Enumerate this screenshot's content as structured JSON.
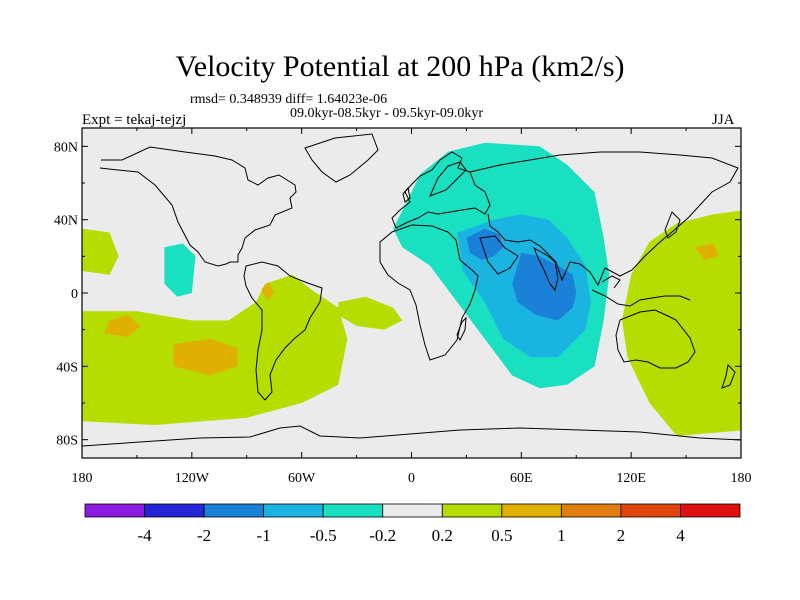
{
  "chart_data": {
    "type": "contour-map",
    "title": "Velocity Potential at 200 hPa (km2/s)",
    "stats": "rmsd= 0.348939 diff= 1.64023e-06",
    "periods": "09.0kyr-08.5kyr - 09.5kyr-09.0kyr",
    "left_label": "Expt = tekaj-tejzj",
    "right_label": "JJA",
    "x_ticks": [
      "180",
      "120W",
      "60W",
      "0",
      "60E",
      "120E",
      "180"
    ],
    "x_tick_values": [
      -180,
      -120,
      -60,
      0,
      60,
      120,
      180
    ],
    "y_ticks": [
      "80N",
      "40N",
      "0",
      "40S",
      "80S"
    ],
    "y_tick_values": [
      80,
      40,
      0,
      -40,
      -80
    ],
    "xlim": [
      -180,
      180
    ],
    "ylim": [
      -90,
      90
    ],
    "levels": [
      "-4",
      "-2",
      "-1",
      "-0.5",
      "-0.2",
      "0.2",
      "0.5",
      "1",
      "2",
      "4"
    ],
    "colors": [
      "#8c1ae0",
      "#2525d8",
      "#1a80d8",
      "#1ab4e0",
      "#1ae0c2",
      "#ebebeb",
      "#b6dd00",
      "#dfb000",
      "#e07e10",
      "#e0450e",
      "#e01010"
    ],
    "regions": [
      {
        "name": "atlantic-pacific-positive",
        "level": "0.2..0.5",
        "color": "#b6dd00",
        "points": [
          [
            -180,
            -10
          ],
          [
            -150,
            -10
          ],
          [
            -120,
            -15
          ],
          [
            -100,
            -15
          ],
          [
            -85,
            -5
          ],
          [
            -80,
            5
          ],
          [
            -65,
            10
          ],
          [
            -55,
            2
          ],
          [
            -40,
            -8
          ],
          [
            -35,
            -25
          ],
          [
            -40,
            -50
          ],
          [
            -60,
            -60
          ],
          [
            -90,
            -68
          ],
          [
            -140,
            -72
          ],
          [
            -180,
            -70
          ]
        ]
      },
      {
        "name": "west-pacific-positive-edge",
        "level": "0.2..0.5",
        "color": "#b6dd00",
        "points": [
          [
            -180,
            35
          ],
          [
            -165,
            33
          ],
          [
            -160,
            20
          ],
          [
            -165,
            10
          ],
          [
            -180,
            12
          ]
        ]
      },
      {
        "name": "south-atlantic-positive",
        "level": "0.2..0.5",
        "color": "#b6dd00",
        "points": [
          [
            -40,
            -5
          ],
          [
            -25,
            -2
          ],
          [
            -10,
            -8
          ],
          [
            -5,
            -15
          ],
          [
            -15,
            -20
          ],
          [
            -30,
            -18
          ],
          [
            -40,
            -12
          ]
        ]
      },
      {
        "name": "west-pacific-positive",
        "level": "0.2..0.5",
        "color": "#b6dd00",
        "points": [
          [
            180,
            45
          ],
          [
            165,
            43
          ],
          [
            145,
            38
          ],
          [
            130,
            28
          ],
          [
            120,
            10
          ],
          [
            115,
            -15
          ],
          [
            118,
            -35
          ],
          [
            130,
            -60
          ],
          [
            145,
            -78
          ],
          [
            180,
            -75
          ]
        ]
      },
      {
        "name": "central-pacific-orange-1",
        "level": "0.5..1",
        "color": "#dfb000",
        "points": [
          [
            -165,
            -15
          ],
          [
            -155,
            -12
          ],
          [
            -148,
            -18
          ],
          [
            -155,
            -24
          ],
          [
            -168,
            -22
          ]
        ]
      },
      {
        "name": "south-pacific-orange",
        "level": "0.5..1",
        "color": "#dfb000",
        "points": [
          [
            -130,
            -28
          ],
          [
            -110,
            -25
          ],
          [
            -95,
            -30
          ],
          [
            -95,
            -40
          ],
          [
            -110,
            -45
          ],
          [
            -130,
            -40
          ]
        ]
      },
      {
        "name": "andes-orange",
        "level": "0.5..1",
        "color": "#dfb000",
        "points": [
          [
            -82,
            2
          ],
          [
            -78,
            6
          ],
          [
            -75,
            0
          ],
          [
            -79,
            -4
          ]
        ]
      },
      {
        "name": "west-pacific-orange",
        "level": "0.5..1",
        "color": "#dfb000",
        "points": [
          [
            155,
            25
          ],
          [
            165,
            27
          ],
          [
            168,
            20
          ],
          [
            160,
            18
          ]
        ]
      },
      {
        "name": "pacific-negative",
        "level": "-0.5..-0.2",
        "color": "#1ae0c2",
        "points": [
          [
            -135,
            25
          ],
          [
            -125,
            27
          ],
          [
            -118,
            20
          ],
          [
            -120,
            0
          ],
          [
            -128,
            -2
          ],
          [
            -135,
            5
          ]
        ]
      },
      {
        "name": "eurasia-negative",
        "level": "-0.5..-0.2",
        "color": "#1ae0c2",
        "points": [
          [
            5,
            65
          ],
          [
            20,
            77
          ],
          [
            40,
            82
          ],
          [
            70,
            80
          ],
          [
            85,
            70
          ],
          [
            100,
            55
          ],
          [
            105,
            30
          ],
          [
            108,
            10
          ],
          [
            105,
            -15
          ],
          [
            100,
            -40
          ],
          [
            85,
            -50
          ],
          [
            70,
            -52
          ],
          [
            55,
            -45
          ],
          [
            40,
            -25
          ],
          [
            25,
            -5
          ],
          [
            10,
            15
          ],
          [
            -5,
            25
          ],
          [
            -10,
            35
          ]
        ]
      },
      {
        "name": "indian-ocean-negative",
        "level": "-1..-0.5",
        "color": "#1ab4e0",
        "points": [
          [
            25,
            33
          ],
          [
            45,
            40
          ],
          [
            60,
            43
          ],
          [
            75,
            40
          ],
          [
            85,
            30
          ],
          [
            95,
            15
          ],
          [
            98,
            -5
          ],
          [
            95,
            -20
          ],
          [
            80,
            -35
          ],
          [
            65,
            -35
          ],
          [
            50,
            -25
          ],
          [
            40,
            -5
          ],
          [
            28,
            12
          ]
        ]
      },
      {
        "name": "indian-ocean-core",
        "level": "-2..-1",
        "color": "#1a80d8",
        "points": [
          [
            60,
            22
          ],
          [
            70,
            20
          ],
          [
            80,
            15
          ],
          [
            88,
            10
          ],
          [
            90,
            0
          ],
          [
            88,
            -8
          ],
          [
            80,
            -15
          ],
          [
            68,
            -12
          ],
          [
            58,
            -5
          ],
          [
            55,
            5
          ]
        ]
      },
      {
        "name": "arabia-core",
        "level": "-2..-1",
        "color": "#1a80d8",
        "points": [
          [
            30,
            30
          ],
          [
            40,
            35
          ],
          [
            48,
            32
          ],
          [
            50,
            25
          ],
          [
            45,
            20
          ],
          [
            38,
            18
          ],
          [
            32,
            22
          ]
        ]
      }
    ]
  }
}
